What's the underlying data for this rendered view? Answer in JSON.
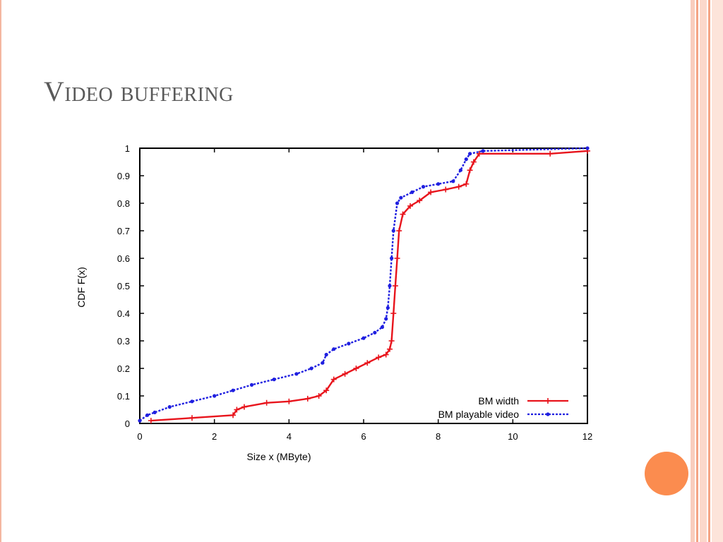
{
  "slide": {
    "title": "Video buffering"
  },
  "colors": {
    "accent_circle": "#fb8c4f",
    "series_bm_width": "#e8141c",
    "series_bm_playable": "#1f1fe0"
  },
  "chart_data": {
    "type": "line",
    "xlabel": "Size x (MByte)",
    "ylabel": "CDF F(x)",
    "xlim": [
      0,
      12
    ],
    "ylim": [
      0,
      1
    ],
    "xticks": [
      "0",
      "2",
      "4",
      "6",
      "8",
      "10",
      "12"
    ],
    "yticks": [
      "0",
      "0.1",
      "0.2",
      "0.3",
      "0.4",
      "0.5",
      "0.6",
      "0.7",
      "0.8",
      "0.9",
      "1"
    ],
    "grid": false,
    "legend_position": "bottom-right",
    "series": [
      {
        "name": "BM width",
        "color": "#e8141c",
        "style": "solid",
        "marker": "plus",
        "points": [
          [
            0.3,
            0.01
          ],
          [
            1.4,
            0.02
          ],
          [
            2.5,
            0.03
          ],
          [
            2.6,
            0.05
          ],
          [
            2.8,
            0.06
          ],
          [
            3.4,
            0.075
          ],
          [
            4.0,
            0.08
          ],
          [
            4.5,
            0.09
          ],
          [
            4.8,
            0.1
          ],
          [
            5.0,
            0.12
          ],
          [
            5.2,
            0.16
          ],
          [
            5.5,
            0.18
          ],
          [
            5.8,
            0.2
          ],
          [
            6.1,
            0.22
          ],
          [
            6.4,
            0.24
          ],
          [
            6.6,
            0.25
          ],
          [
            6.7,
            0.27
          ],
          [
            6.75,
            0.3
          ],
          [
            6.8,
            0.4
          ],
          [
            6.85,
            0.5
          ],
          [
            6.9,
            0.6
          ],
          [
            6.95,
            0.7
          ],
          [
            7.05,
            0.76
          ],
          [
            7.25,
            0.79
          ],
          [
            7.5,
            0.81
          ],
          [
            7.8,
            0.84
          ],
          [
            8.2,
            0.85
          ],
          [
            8.55,
            0.86
          ],
          [
            8.75,
            0.87
          ],
          [
            8.85,
            0.92
          ],
          [
            8.95,
            0.95
          ],
          [
            9.1,
            0.98
          ],
          [
            11.0,
            0.98
          ],
          [
            12.0,
            0.99
          ]
        ]
      },
      {
        "name": "BM playable video",
        "color": "#1f1fe0",
        "style": "dotted",
        "marker": "circle",
        "points": [
          [
            0.0,
            0.01
          ],
          [
            0.2,
            0.03
          ],
          [
            0.4,
            0.04
          ],
          [
            0.8,
            0.06
          ],
          [
            1.4,
            0.08
          ],
          [
            2.0,
            0.1
          ],
          [
            2.5,
            0.12
          ],
          [
            3.0,
            0.14
          ],
          [
            3.6,
            0.16
          ],
          [
            4.2,
            0.18
          ],
          [
            4.6,
            0.2
          ],
          [
            4.9,
            0.22
          ],
          [
            5.0,
            0.25
          ],
          [
            5.2,
            0.27
          ],
          [
            5.6,
            0.29
          ],
          [
            6.0,
            0.31
          ],
          [
            6.3,
            0.33
          ],
          [
            6.5,
            0.35
          ],
          [
            6.6,
            0.38
          ],
          [
            6.65,
            0.42
          ],
          [
            6.7,
            0.5
          ],
          [
            6.75,
            0.6
          ],
          [
            6.8,
            0.7
          ],
          [
            6.9,
            0.8
          ],
          [
            7.0,
            0.82
          ],
          [
            7.3,
            0.84
          ],
          [
            7.6,
            0.86
          ],
          [
            8.0,
            0.87
          ],
          [
            8.4,
            0.88
          ],
          [
            8.6,
            0.92
          ],
          [
            8.75,
            0.96
          ],
          [
            8.85,
            0.98
          ],
          [
            9.2,
            0.99
          ],
          [
            12.0,
            1.0
          ]
        ]
      }
    ]
  }
}
